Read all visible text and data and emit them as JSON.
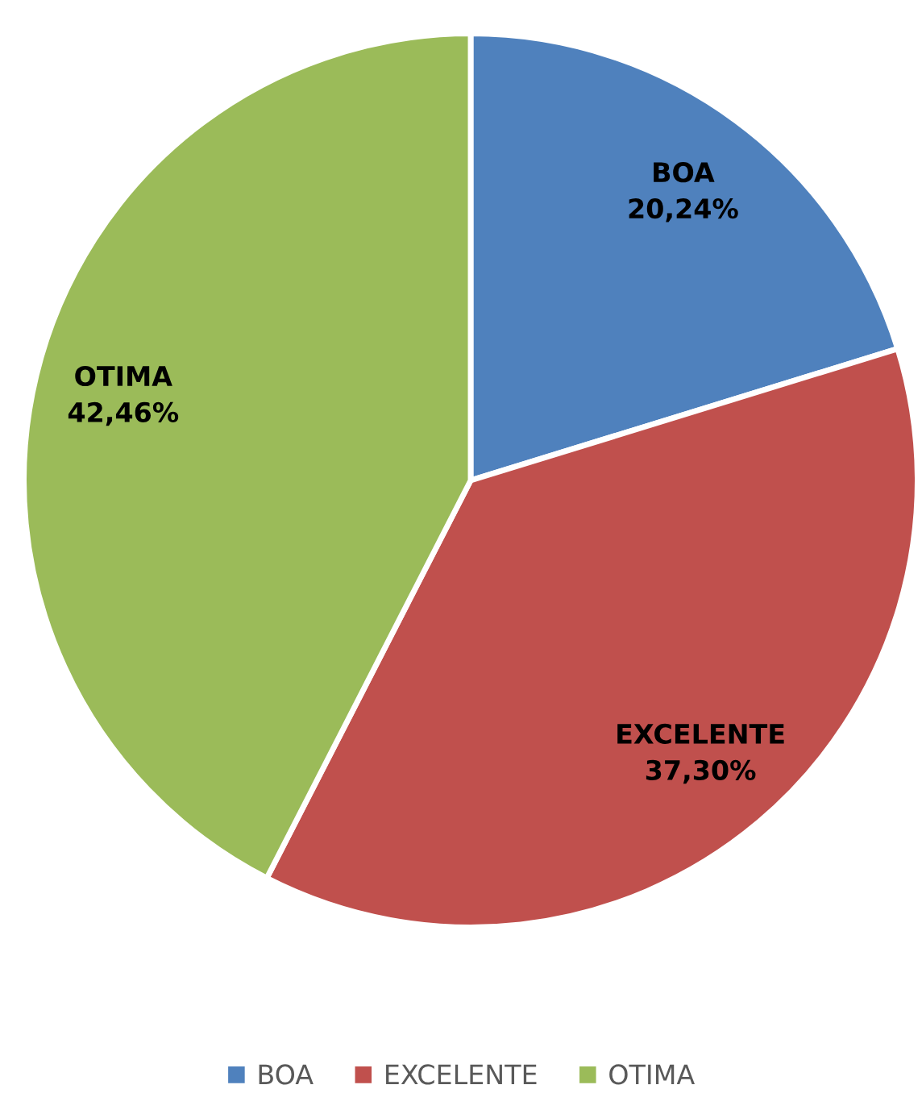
{
  "chart_data": {
    "type": "pie",
    "categories": [
      "BOA",
      "EXCELENTE",
      "OTIMA"
    ],
    "values": [
      20.24,
      37.3,
      42.46
    ],
    "value_labels": [
      "20,24%",
      "37,30%",
      "42,46%"
    ],
    "colors": [
      "#4f81bd",
      "#c0504d",
      "#9bbb59"
    ],
    "legend": "bottom"
  }
}
